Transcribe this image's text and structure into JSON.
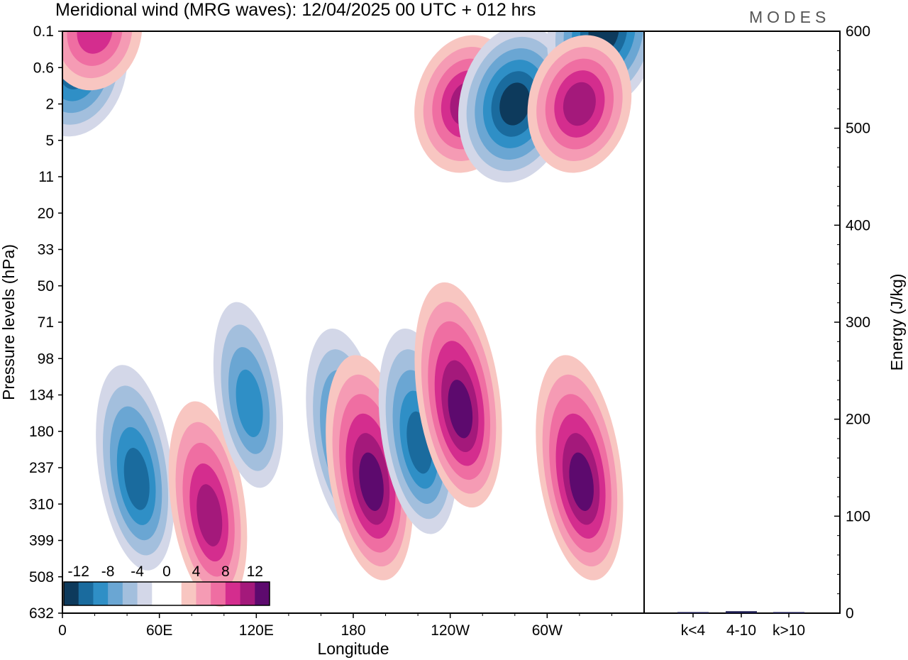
{
  "title": "Meridional wind (MRG waves):  12/04/2025  00 UTC  + 012 hrs",
  "logo": "MODES",
  "colors": {
    "neg": [
      "#0d3a5c",
      "#1a6b9e",
      "#2f8fc6",
      "#6aa6d3",
      "#a3bfdd",
      "#d3d7e8"
    ],
    "neutral": "#ffffff",
    "pos": [
      "#f8c6c1",
      "#f59bb4",
      "#ef6ea2",
      "#d42d8e",
      "#a4197b",
      "#5d0a6e"
    ]
  },
  "chart_data": [
    {
      "type": "heatmap",
      "xlabel": "Longitude",
      "ylabel": "Pressure levels (hPa)",
      "x_ticks": [
        "0",
        "60E",
        "120E",
        "180",
        "120W",
        "60W"
      ],
      "y_ticks": [
        "0.1",
        "0.6",
        "2",
        "5",
        "11",
        "20",
        "33",
        "50",
        "71",
        "98",
        "134",
        "180",
        "237",
        "310",
        "399",
        "508",
        "632"
      ],
      "colorbar": {
        "labels": [
          "-12",
          "-8",
          "-4",
          "0",
          "4",
          "8",
          "12"
        ],
        "levels": [
          -12,
          -10,
          -8,
          -6,
          -4,
          -2,
          0,
          2,
          4,
          6,
          8,
          10,
          12
        ]
      },
      "features": [
        {
          "lon": 45,
          "p": "237",
          "v": -9
        },
        {
          "lon": 90,
          "p": "310",
          "v": 8
        },
        {
          "lon": 115,
          "p": "134",
          "v": -6
        },
        {
          "lon": 175,
          "p": "180",
          "v": -9
        },
        {
          "lon": 190,
          "p": "237",
          "v": 10
        },
        {
          "lon": 220,
          "p": "180",
          "v": -9
        },
        {
          "lon": 245,
          "p": "134",
          "v": 10
        },
        {
          "lon": 320,
          "p": "237",
          "v": 10
        },
        {
          "lon": 8,
          "p": "0.6",
          "v": -8
        },
        {
          "lon": 20,
          "p": "0.1",
          "v": 6
        },
        {
          "lon": 250,
          "p": "2",
          "v": 8
        },
        {
          "lon": 280,
          "p": "2",
          "v": -10
        },
        {
          "lon": 335,
          "p": "0.1",
          "v": -10
        },
        {
          "lon": 320,
          "p": "2",
          "v": 8
        }
      ]
    },
    {
      "type": "bar",
      "categories": [
        "k<4",
        "4-10",
        "k>10"
      ],
      "values": [
        0.5,
        2,
        0.5
      ],
      "ylabel": "Energy (J/kg)",
      "y_ticks": [
        "0",
        "100",
        "200",
        "300",
        "400",
        "500",
        "600"
      ],
      "ylim": [
        0,
        600
      ],
      "bar_color": "#1a1a4e"
    }
  ]
}
